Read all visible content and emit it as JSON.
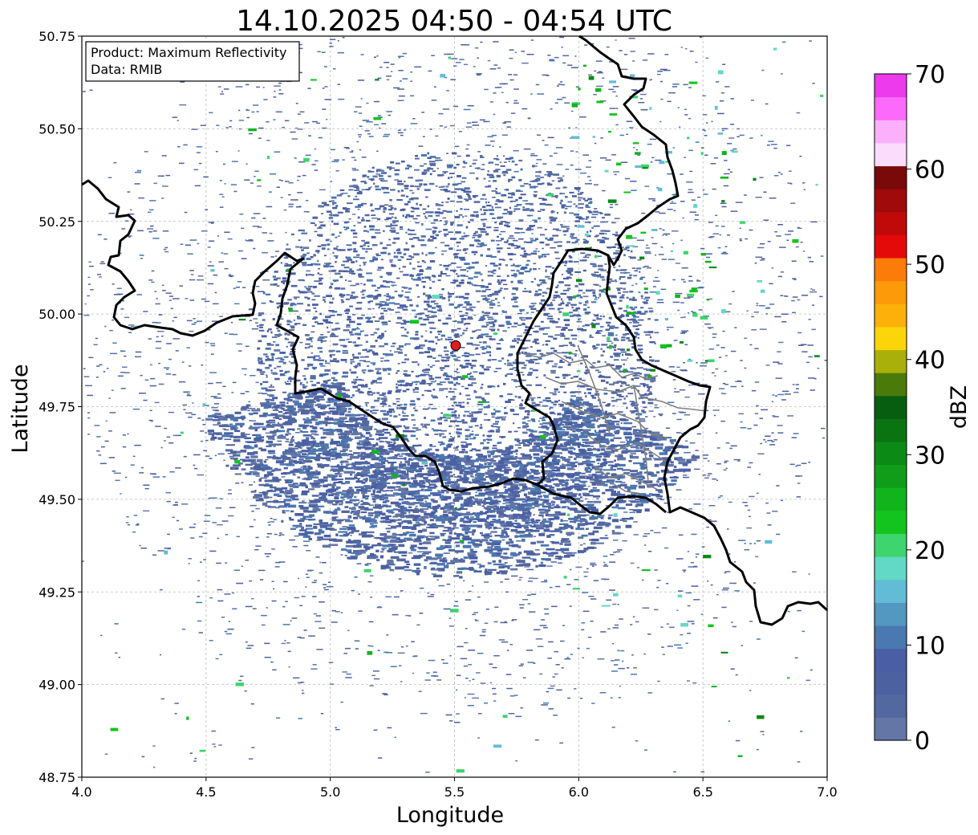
{
  "title": "14.10.2025 04:50 - 04:54 UTC",
  "info_box": {
    "product": "Product: Maximum Reflectivity",
    "data": "Data: RMIB"
  },
  "axes": {
    "xlabel": "Longitude",
    "ylabel": "Latitude",
    "xlim": [
      4.0,
      7.0
    ],
    "ylim": [
      48.75,
      50.75
    ],
    "xticks": [
      "4.0",
      "4.5",
      "5.0",
      "5.5",
      "6.0",
      "6.5",
      "7.0"
    ],
    "yticks": [
      "48.75",
      "49.00",
      "49.25",
      "49.50",
      "49.75",
      "50.00",
      "50.25",
      "50.50",
      "50.75"
    ],
    "grid": "on (dashed, light gray)"
  },
  "radar_site": {
    "lon": 5.505,
    "lat": 49.915,
    "marker_color": "#e41a1c"
  },
  "colorbar": {
    "label": "dBZ",
    "range": [
      0,
      70
    ],
    "ticks": [
      "0",
      "10",
      "20",
      "30",
      "40",
      "50",
      "60",
      "70"
    ],
    "colors": [
      "#6376a6",
      "#5368a0",
      "#4c62a0",
      "#4a5ea6",
      "#4a78b0",
      "#5298c0",
      "#62bcd6",
      "#62d8c6",
      "#3ed46e",
      "#14c41e",
      "#12b41c",
      "#109e1a",
      "#0c8a16",
      "#0a7412",
      "#085e10",
      "#4a7a0a",
      "#aab00a",
      "#fcd40a",
      "#fcb00a",
      "#fc9a0a",
      "#fc7c0a",
      "#e40a0a",
      "#c00a0a",
      "#a00a0a",
      "#7a0a0a",
      "#fcdcfc",
      "#fcb0fc",
      "#fc6afc",
      "#ec3aec"
    ]
  },
  "legend_colors": {
    "border_country": "#000000",
    "border_region": "#808080",
    "grid": "#bbbbbb",
    "echo_main": "#5368a0"
  }
}
